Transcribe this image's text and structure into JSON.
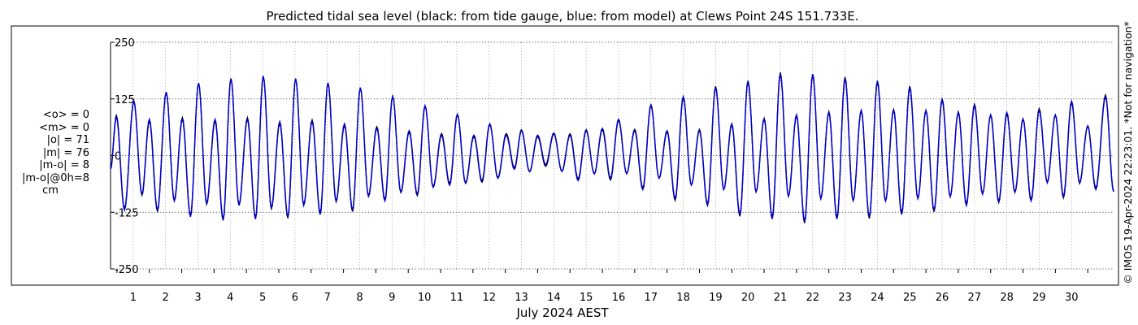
{
  "chart_data": {
    "type": "line",
    "title": "Predicted tidal sea level (black: from tide gauge, blue: from model) at Clews Point 24S 151.733E.",
    "xlabel": "July 2024 AEST",
    "ylabel": "",
    "x_ticks": [
      "1",
      "2",
      "3",
      "4",
      "5",
      "6",
      "7",
      "8",
      "9",
      "10",
      "11",
      "12",
      "13",
      "14",
      "15",
      "16",
      "17",
      "18",
      "19",
      "20",
      "21",
      "22",
      "23",
      "24",
      "25",
      "26",
      "27",
      "28",
      "29",
      "30"
    ],
    "xlim_days": [
      0.3,
      31.3
    ],
    "y_ticks": [
      "250",
      "125",
      "0",
      "-125",
      "-250"
    ],
    "ylim": [
      -250,
      250
    ],
    "grid": true,
    "series": [
      {
        "name": "from tide gauge",
        "color": "#000000"
      },
      {
        "name": "from model",
        "color": "#0000cc"
      }
    ],
    "tidal_extremes": [
      {
        "day": 0.3,
        "cm": -30
      },
      {
        "day": 0.48,
        "cm": 85
      },
      {
        "day": 0.73,
        "cm": -120
      },
      {
        "day": 1.02,
        "cm": 120
      },
      {
        "day": 1.27,
        "cm": -85
      },
      {
        "day": 1.5,
        "cm": 80
      },
      {
        "day": 1.75,
        "cm": -120
      },
      {
        "day": 2.02,
        "cm": 140
      },
      {
        "day": 2.27,
        "cm": -100
      },
      {
        "day": 2.52,
        "cm": 80
      },
      {
        "day": 2.77,
        "cm": -135
      },
      {
        "day": 3.02,
        "cm": 160
      },
      {
        "day": 3.27,
        "cm": -105
      },
      {
        "day": 3.53,
        "cm": 80
      },
      {
        "day": 3.78,
        "cm": -140
      },
      {
        "day": 4.02,
        "cm": 170
      },
      {
        "day": 4.27,
        "cm": -110
      },
      {
        "day": 4.53,
        "cm": 80
      },
      {
        "day": 4.78,
        "cm": -140
      },
      {
        "day": 5.02,
        "cm": 175
      },
      {
        "day": 5.27,
        "cm": -115
      },
      {
        "day": 5.53,
        "cm": 75
      },
      {
        "day": 5.78,
        "cm": -135
      },
      {
        "day": 6.02,
        "cm": 170
      },
      {
        "day": 6.27,
        "cm": -110
      },
      {
        "day": 6.53,
        "cm": 75
      },
      {
        "day": 6.78,
        "cm": -130
      },
      {
        "day": 7.02,
        "cm": 160
      },
      {
        "day": 7.27,
        "cm": -100
      },
      {
        "day": 7.53,
        "cm": 70
      },
      {
        "day": 7.78,
        "cm": -120
      },
      {
        "day": 8.02,
        "cm": 150
      },
      {
        "day": 8.27,
        "cm": -90
      },
      {
        "day": 8.53,
        "cm": 60
      },
      {
        "day": 8.78,
        "cm": -100
      },
      {
        "day": 9.02,
        "cm": 130
      },
      {
        "day": 9.27,
        "cm": -80
      },
      {
        "day": 9.53,
        "cm": 55
      },
      {
        "day": 9.78,
        "cm": -85
      },
      {
        "day": 10.02,
        "cm": 110
      },
      {
        "day": 10.27,
        "cm": -70
      },
      {
        "day": 10.53,
        "cm": 45
      },
      {
        "day": 10.78,
        "cm": -65
      },
      {
        "day": 11.02,
        "cm": 90
      },
      {
        "day": 11.27,
        "cm": -60
      },
      {
        "day": 11.53,
        "cm": 45
      },
      {
        "day": 11.78,
        "cm": -55
      },
      {
        "day": 12.02,
        "cm": 70
      },
      {
        "day": 12.27,
        "cm": -50
      },
      {
        "day": 12.53,
        "cm": 45
      },
      {
        "day": 12.78,
        "cm": -30
      },
      {
        "day": 13.0,
        "cm": 55
      },
      {
        "day": 13.25,
        "cm": -35
      },
      {
        "day": 13.5,
        "cm": 45
      },
      {
        "day": 13.75,
        "cm": -20
      },
      {
        "day": 14.0,
        "cm": 50
      },
      {
        "day": 14.25,
        "cm": -35
      },
      {
        "day": 14.5,
        "cm": 45
      },
      {
        "day": 14.75,
        "cm": -55
      },
      {
        "day": 15.0,
        "cm": 55
      },
      {
        "day": 15.25,
        "cm": -40
      },
      {
        "day": 15.5,
        "cm": 60
      },
      {
        "day": 15.75,
        "cm": -50
      },
      {
        "day": 16.0,
        "cm": 80
      },
      {
        "day": 16.25,
        "cm": -40
      },
      {
        "day": 16.5,
        "cm": 55
      },
      {
        "day": 16.75,
        "cm": -75
      },
      {
        "day": 17.0,
        "cm": 110
      },
      {
        "day": 17.25,
        "cm": -50
      },
      {
        "day": 17.5,
        "cm": 55
      },
      {
        "day": 17.75,
        "cm": -95
      },
      {
        "day": 18.0,
        "cm": 130
      },
      {
        "day": 18.25,
        "cm": -65
      },
      {
        "day": 18.5,
        "cm": 55
      },
      {
        "day": 18.75,
        "cm": -110
      },
      {
        "day": 19.0,
        "cm": 150
      },
      {
        "day": 19.25,
        "cm": -75
      },
      {
        "day": 19.5,
        "cm": 70
      },
      {
        "day": 19.75,
        "cm": -130
      },
      {
        "day": 20.0,
        "cm": 165
      },
      {
        "day": 20.25,
        "cm": -80
      },
      {
        "day": 20.5,
        "cm": 80
      },
      {
        "day": 20.75,
        "cm": -140
      },
      {
        "day": 21.0,
        "cm": 180
      },
      {
        "day": 21.25,
        "cm": -90
      },
      {
        "day": 21.5,
        "cm": 90
      },
      {
        "day": 21.75,
        "cm": -145
      },
      {
        "day": 22.0,
        "cm": 180
      },
      {
        "day": 22.25,
        "cm": -95
      },
      {
        "day": 22.5,
        "cm": 95
      },
      {
        "day": 22.75,
        "cm": -140
      },
      {
        "day": 23.0,
        "cm": 170
      },
      {
        "day": 23.25,
        "cm": -100
      },
      {
        "day": 23.5,
        "cm": 100
      },
      {
        "day": 23.75,
        "cm": -135
      },
      {
        "day": 24.0,
        "cm": 165
      },
      {
        "day": 24.25,
        "cm": -100
      },
      {
        "day": 24.5,
        "cm": 100
      },
      {
        "day": 24.75,
        "cm": -130
      },
      {
        "day": 25.0,
        "cm": 150
      },
      {
        "day": 25.25,
        "cm": -95
      },
      {
        "day": 25.5,
        "cm": 100
      },
      {
        "day": 25.75,
        "cm": -120
      },
      {
        "day": 26.0,
        "cm": 125
      },
      {
        "day": 26.25,
        "cm": -90
      },
      {
        "day": 26.5,
        "cm": 95
      },
      {
        "day": 26.75,
        "cm": -110
      },
      {
        "day": 27.0,
        "cm": 110
      },
      {
        "day": 27.25,
        "cm": -85
      },
      {
        "day": 27.5,
        "cm": 90
      },
      {
        "day": 27.75,
        "cm": -100
      },
      {
        "day": 28.0,
        "cm": 95
      },
      {
        "day": 28.25,
        "cm": -80
      },
      {
        "day": 28.5,
        "cm": 80
      },
      {
        "day": 28.75,
        "cm": -100
      },
      {
        "day": 29.0,
        "cm": 100
      },
      {
        "day": 29.25,
        "cm": -60
      },
      {
        "day": 29.5,
        "cm": 90
      },
      {
        "day": 29.75,
        "cm": -90
      },
      {
        "day": 30.0,
        "cm": 120
      },
      {
        "day": 30.25,
        "cm": -60
      },
      {
        "day": 30.5,
        "cm": 65
      },
      {
        "day": 30.75,
        "cm": -75
      },
      {
        "day": 31.05,
        "cm": 130
      },
      {
        "day": 31.3,
        "cm": -80
      }
    ]
  },
  "stats": {
    "lines": [
      "<o> = 0",
      "<m> = 0",
      "|o| = 71",
      "|m| = 76",
      "|m-o| = 8",
      "|m-o|@0h=8"
    ],
    "unit": "cm"
  },
  "side_note": "© IMOS 19-Apr-2024 22:23:01. *Not for navigation*"
}
